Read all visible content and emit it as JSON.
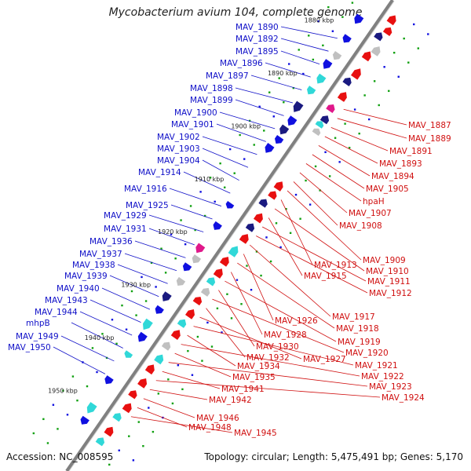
{
  "title": "Mycobacterium avium 104, complete genome",
  "footer": {
    "accession": "Accession: NC_008595",
    "summary": "Topology: circular; Length: 5,475,491 bp; Genes: 5,170"
  },
  "colors": {
    "forward_strand": "#e81010",
    "reverse_strand": "#1010e0",
    "rna_cyan": "#30d8d8",
    "dark_blue": "#1a1a80",
    "grey": "#c0c0c0",
    "magenta": "#e0188a",
    "backbone": "#808080",
    "tick_green": "#10a010",
    "left_label": "#1010c8",
    "right_label": "#d01010"
  },
  "kbp_marks": [
    "1880 kbp",
    "1890 kbp",
    "1900 kbp",
    "1910 kbp",
    "1920 kbp",
    "1930 kbp",
    "1940 kbp",
    "1950 kbp"
  ],
  "left_labels": [
    "MAV_1890",
    "MAV_1892",
    "MAV_1895",
    "MAV_1896",
    "MAV_1897",
    "MAV_1898",
    "MAV_1899",
    "MAV_1900",
    "MAV_1901",
    "MAV_1902",
    "MAV_1903",
    "MAV_1904",
    "MAV_1914",
    "MAV_1916",
    "MAV_1925",
    "MAV_1929",
    "MAV_1931",
    "MAV_1936",
    "MAV_1937",
    "MAV_1938",
    "MAV_1939",
    "MAV_1940",
    "MAV_1943",
    "MAV_1944",
    "mhpB",
    "MAV_1949",
    "MAV_1950"
  ],
  "right_labels": [
    "MAV_1887",
    "MAV_1889",
    "MAV_1891",
    "MAV_1893",
    "MAV_1894",
    "MAV_1905",
    "hpaH",
    "MAV_1907",
    "MAV_1908",
    "MAV_1909",
    "MAV_1913",
    "MAV_1910",
    "MAV_1915",
    "MAV_1911",
    "MAV_1912",
    "MAV_1917",
    "MAV_1926",
    "MAV_1918",
    "MAV_1928",
    "MAV_1919",
    "MAV_1930",
    "MAV_1920",
    "MAV_1932",
    "MAV_1927",
    "MAV_1921",
    "MAV_1934",
    "MAV_1922",
    "MAV_1935",
    "MAV_1923",
    "MAV_1941",
    "MAV_1924",
    "MAV_1942",
    "MAV_1946",
    "MAV_1948",
    "MAV_1945"
  ]
}
